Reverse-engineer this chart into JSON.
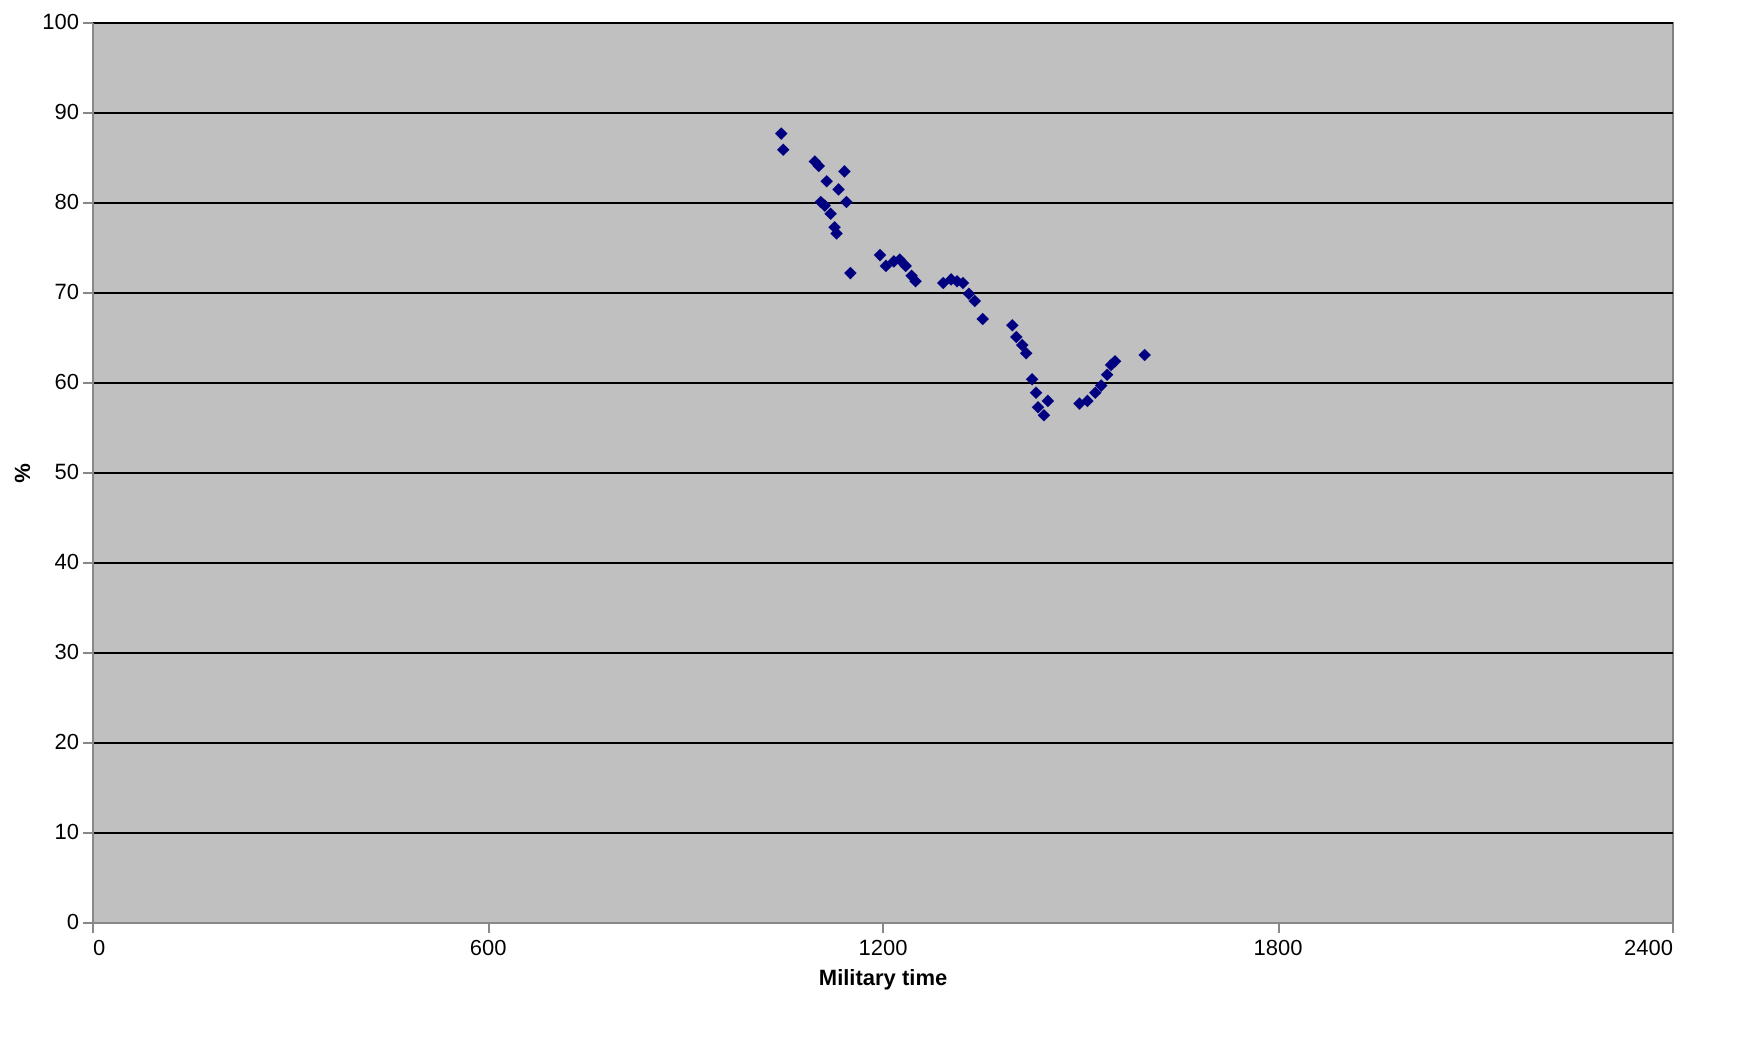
{
  "chart_data": {
    "type": "scatter",
    "xlabel": "Military time",
    "ylabel": "%",
    "marker": "diamond",
    "grid": "y",
    "legend": false,
    "x": [
      1047,
      1050,
      1098,
      1104,
      1116,
      1143,
      1134,
      1107,
      1113,
      1146,
      1122,
      1128,
      1131,
      1152,
      1197,
      1206,
      1218,
      1227,
      1236,
      1245,
      1251,
      1293,
      1305,
      1314,
      1323,
      1332,
      1341,
      1353,
      1398,
      1404,
      1413,
      1419,
      1428,
      1434,
      1452,
      1437,
      1446,
      1500,
      1512,
      1524,
      1533,
      1542,
      1548,
      1554,
      1599
    ],
    "series": [
      {
        "color": "#000080",
        "values": [
          87.6,
          85.8,
          84.5,
          84.0,
          82.3,
          83.4,
          81.4,
          80.0,
          79.6,
          80.0,
          78.7,
          77.2,
          76.5,
          72.1,
          74.1,
          72.9,
          73.4,
          73.6,
          72.9,
          71.8,
          71.2,
          71.0,
          71.4,
          71.2,
          71.0,
          69.8,
          69.0,
          67.0,
          66.3,
          65.0,
          64.1,
          63.2,
          60.3,
          58.8,
          57.9,
          57.2,
          56.3,
          57.6,
          57.9,
          58.8,
          59.6,
          60.8,
          61.9,
          62.3,
          63.0
        ]
      }
    ],
    "xlim": [
      0,
      2400
    ],
    "xticks": [
      0,
      600,
      1200,
      1800,
      2400
    ],
    "ylim": [
      0,
      100
    ],
    "yticks": [
      0,
      10,
      20,
      30,
      40,
      50,
      60,
      70,
      80,
      90,
      100
    ]
  }
}
